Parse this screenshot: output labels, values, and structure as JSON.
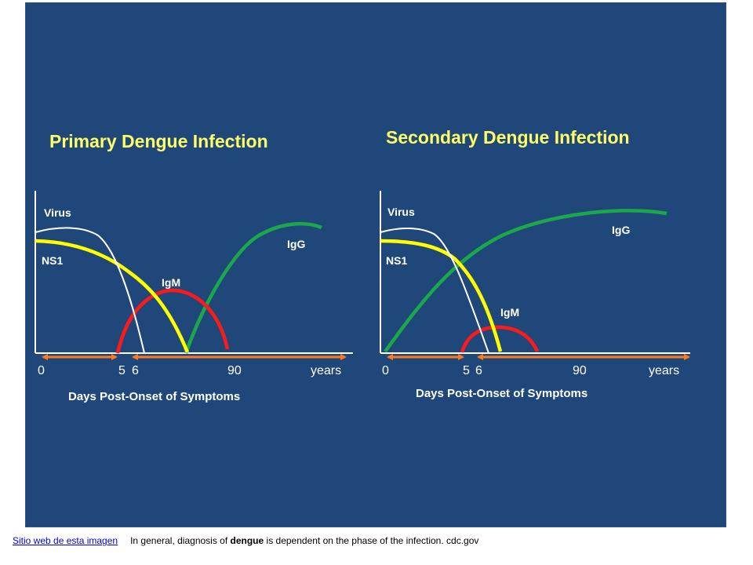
{
  "panels": [
    {
      "title": "Primary Dengue Infection",
      "labels": {
        "virus": "Virus",
        "ns1": "NS1",
        "igm": "IgM",
        "igg": "IgG"
      },
      "ticks": [
        "0",
        "5",
        "6",
        "90",
        "years"
      ],
      "xlabel": "Days Post-Onset of Symptoms"
    },
    {
      "title": "Secondary Dengue Infection",
      "labels": {
        "virus": "Virus",
        "ns1": "NS1",
        "igm": "IgM",
        "igg": "IgG"
      },
      "ticks": [
        "0",
        "5",
        "6",
        "90",
        "years"
      ],
      "xlabel": "Days Post-Onset of Symptoms"
    }
  ],
  "curve_colors": {
    "virus": "#ffffff",
    "ns1": "#ffff00",
    "igm": "#ff1a1a",
    "igg": "#1aa84a",
    "arrows": "#ff7a1a",
    "title": "#ffff66",
    "background": "#20477a"
  },
  "caption": {
    "link": "Sitio web de esta imagen",
    "text_before": "In general, diagnosis of ",
    "bold": "dengue",
    "text_after": " is dependent on the phase of the infection.  cdc.gov"
  }
}
